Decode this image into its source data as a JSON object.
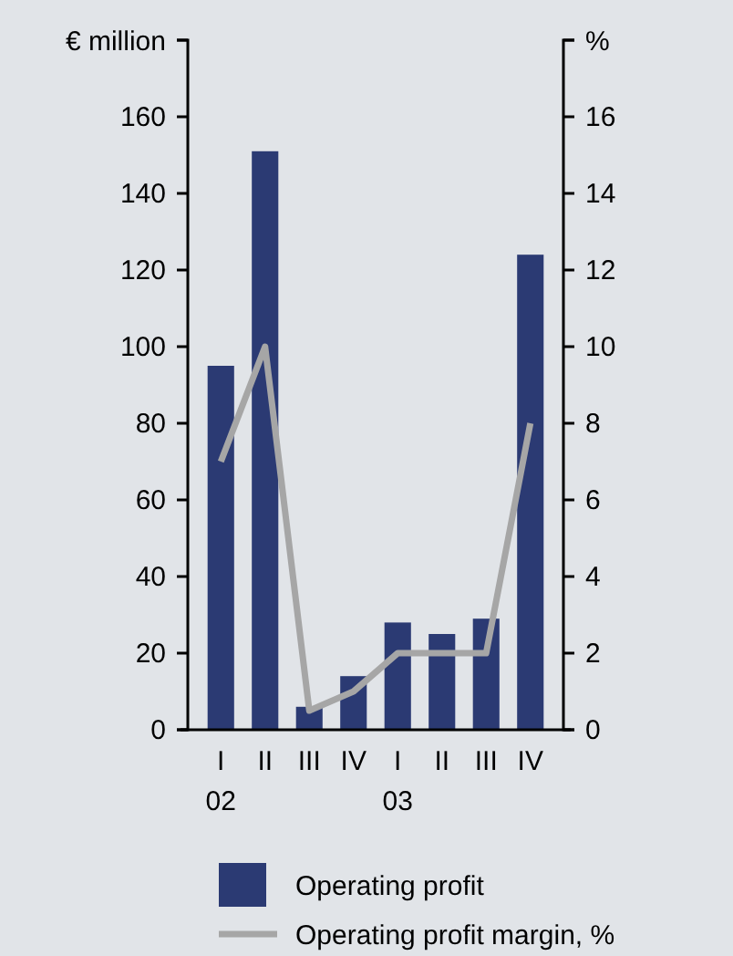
{
  "chart_data": {
    "type": "bar",
    "categories": [
      "I\n02",
      "II",
      "III",
      "IV",
      "I\n03",
      "II",
      "III",
      "IV"
    ],
    "ylabel": "€ million",
    "y2label": "%",
    "ylim": [
      0,
      180
    ],
    "yticks": [
      0,
      20,
      40,
      60,
      80,
      100,
      120,
      140,
      160,
      {
        "value": 180,
        "label": null
      }
    ],
    "y2lim": [
      0,
      18
    ],
    "y2ticks": [
      0,
      2,
      4,
      6,
      8,
      10,
      12,
      14,
      16,
      {
        "value": 18,
        "label": null
      }
    ],
    "series": [
      {
        "name": "Operating profit",
        "color": "#2b3a73",
        "values": [
          95,
          151,
          6,
          14,
          28,
          25,
          29,
          124
        ]
      },
      {
        "name": "Operating profit margin, %",
        "type": "line",
        "axis": "y2",
        "color": "#a6a6a6",
        "values": [
          7,
          10,
          0.5,
          1,
          2,
          2,
          2,
          8
        ]
      }
    ],
    "legend": "bottom",
    "grid": false
  }
}
